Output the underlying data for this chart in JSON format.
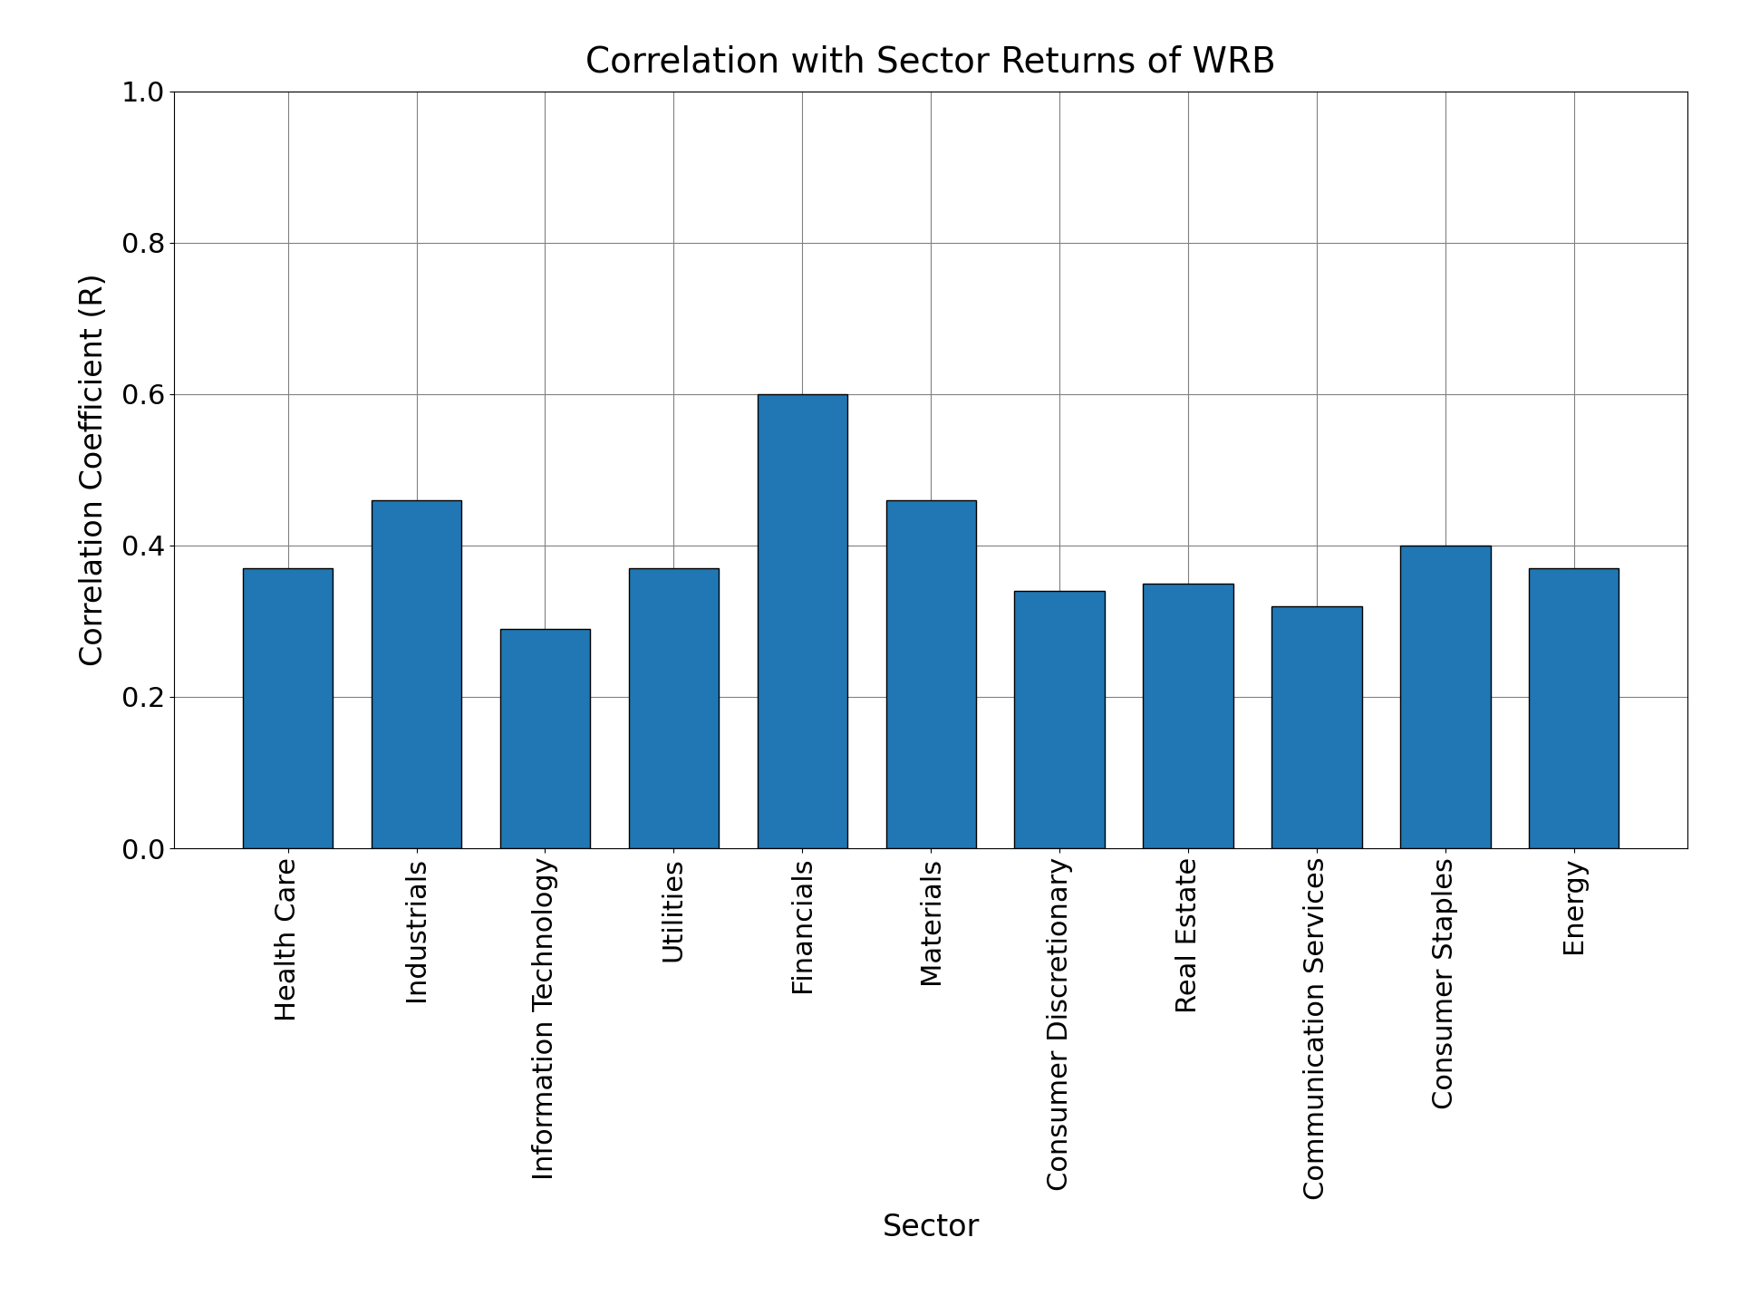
{
  "title": "Correlation with Sector Returns of WRB",
  "xlabel": "Sector",
  "ylabel": "Correlation Coefficient (R)",
  "categories": [
    "Health Care",
    "Industrials",
    "Information Technology",
    "Utilities",
    "Financials",
    "Materials",
    "Consumer Discretionary",
    "Real Estate",
    "Communication Services",
    "Consumer Staples",
    "Energy"
  ],
  "values": [
    0.37,
    0.46,
    0.29,
    0.37,
    0.6,
    0.46,
    0.34,
    0.35,
    0.32,
    0.4,
    0.37
  ],
  "bar_color": "#2077b4",
  "ylim": [
    0.0,
    1.0
  ],
  "yticks": [
    0.0,
    0.2,
    0.4,
    0.6,
    0.8,
    1.0
  ],
  "title_fontsize": 28,
  "label_fontsize": 24,
  "tick_fontsize": 22,
  "bar_width": 0.7,
  "figsize": [
    19.2,
    14.4
  ],
  "dpi": 100
}
